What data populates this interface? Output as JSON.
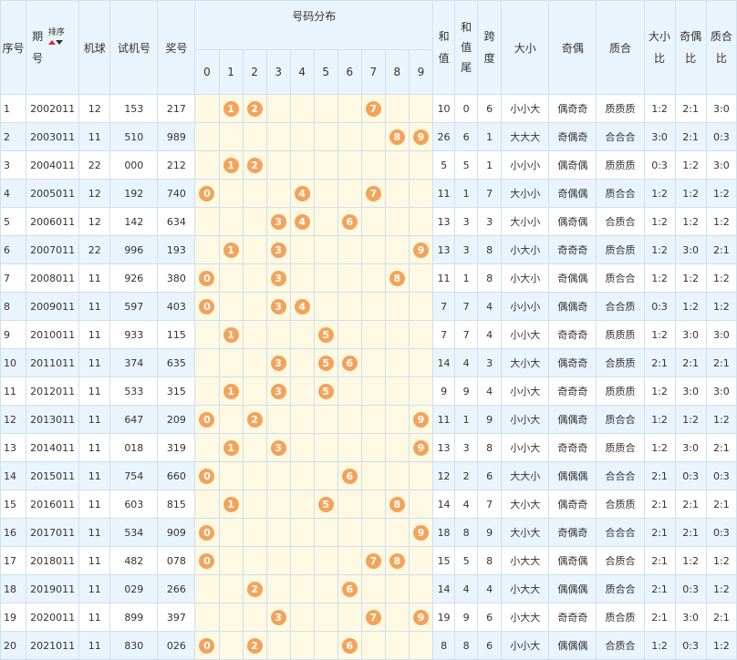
{
  "headers": {
    "seq": "序号",
    "period_top": "期",
    "period_bottom": "号",
    "sort": "排序",
    "machine": "机球",
    "trial": "试机号",
    "prize": "奖号",
    "dist": "号码分布",
    "digits": [
      "0",
      "1",
      "2",
      "3",
      "4",
      "5",
      "6",
      "7",
      "8",
      "9"
    ],
    "sum_top": "和",
    "sum_bottom": "值",
    "tail_top": "和",
    "tail_mid": "值",
    "tail_bottom": "尾",
    "span_top": "跨",
    "span_bottom": "度",
    "size": "大小",
    "parity": "奇偶",
    "prime": "质合",
    "size_ratio_top": "大小",
    "size_ratio_bottom": "比",
    "parity_ratio_top": "奇偶",
    "parity_ratio_bottom": "比",
    "prime_ratio_top": "质合",
    "prime_ratio_bottom": "比"
  },
  "ball_color": "#f3a35b",
  "rows": [
    {
      "seq": "1",
      "period": "2002011",
      "machine": "12",
      "trial": "153",
      "prize": "217",
      "balls": [
        1,
        2,
        7
      ],
      "sum": "10",
      "tail": "0",
      "span": "6",
      "size": "小小大",
      "parity": "偶奇奇",
      "prime": "质质质",
      "sr": "1:2",
      "pr": "2:1",
      "qr": "3:0"
    },
    {
      "seq": "2",
      "period": "2003011",
      "machine": "11",
      "trial": "510",
      "prize": "989",
      "balls": [
        8,
        9
      ],
      "sum": "26",
      "tail": "6",
      "span": "1",
      "size": "大大大",
      "parity": "奇偶奇",
      "prime": "合合合",
      "sr": "3:0",
      "pr": "2:1",
      "qr": "0:3"
    },
    {
      "seq": "3",
      "period": "2004011",
      "machine": "22",
      "trial": "000",
      "prize": "212",
      "balls": [
        1,
        2
      ],
      "sum": "5",
      "tail": "5",
      "span": "1",
      "size": "小小小",
      "parity": "偶奇偶",
      "prime": "质质质",
      "sr": "0:3",
      "pr": "1:2",
      "qr": "3:0"
    },
    {
      "seq": "4",
      "period": "2005011",
      "machine": "12",
      "trial": "192",
      "prize": "740",
      "balls": [
        0,
        4,
        7
      ],
      "sum": "11",
      "tail": "1",
      "span": "7",
      "size": "大小小",
      "parity": "奇偶偶",
      "prime": "质合合",
      "sr": "1:2",
      "pr": "1:2",
      "qr": "1:2"
    },
    {
      "seq": "5",
      "period": "2006011",
      "machine": "12",
      "trial": "142",
      "prize": "634",
      "balls": [
        3,
        4,
        6
      ],
      "sum": "13",
      "tail": "3",
      "span": "3",
      "size": "大小小",
      "parity": "偶奇偶",
      "prime": "合质合",
      "sr": "1:2",
      "pr": "1:2",
      "qr": "1:2"
    },
    {
      "seq": "6",
      "period": "2007011",
      "machine": "22",
      "trial": "996",
      "prize": "193",
      "balls": [
        1,
        3,
        9
      ],
      "sum": "13",
      "tail": "3",
      "span": "8",
      "size": "小大小",
      "parity": "奇奇奇",
      "prime": "质合质",
      "sr": "1:2",
      "pr": "3:0",
      "qr": "2:1"
    },
    {
      "seq": "7",
      "period": "2008011",
      "machine": "11",
      "trial": "926",
      "prize": "380",
      "balls": [
        0,
        3,
        8
      ],
      "sum": "11",
      "tail": "1",
      "span": "8",
      "size": "小大小",
      "parity": "奇偶偶",
      "prime": "质合合",
      "sr": "1:2",
      "pr": "1:2",
      "qr": "1:2"
    },
    {
      "seq": "8",
      "period": "2009011",
      "machine": "11",
      "trial": "597",
      "prize": "403",
      "balls": [
        0,
        3,
        4
      ],
      "sum": "7",
      "tail": "7",
      "span": "4",
      "size": "小小小",
      "parity": "偶偶奇",
      "prime": "合合质",
      "sr": "0:3",
      "pr": "1:2",
      "qr": "1:2"
    },
    {
      "seq": "9",
      "period": "2010011",
      "machine": "11",
      "trial": "933",
      "prize": "115",
      "balls": [
        1,
        5
      ],
      "sum": "7",
      "tail": "7",
      "span": "4",
      "size": "小小大",
      "parity": "奇奇奇",
      "prime": "质质质",
      "sr": "1:2",
      "pr": "3:0",
      "qr": "3:0"
    },
    {
      "seq": "10",
      "period": "2011011",
      "machine": "11",
      "trial": "374",
      "prize": "635",
      "balls": [
        3,
        5,
        6
      ],
      "sum": "14",
      "tail": "4",
      "span": "3",
      "size": "大小大",
      "parity": "偶奇奇",
      "prime": "合质质",
      "sr": "2:1",
      "pr": "2:1",
      "qr": "2:1"
    },
    {
      "seq": "11",
      "period": "2012011",
      "machine": "11",
      "trial": "533",
      "prize": "315",
      "balls": [
        1,
        3,
        5
      ],
      "sum": "9",
      "tail": "9",
      "span": "4",
      "size": "小小大",
      "parity": "奇奇奇",
      "prime": "质质质",
      "sr": "1:2",
      "pr": "3:0",
      "qr": "3:0"
    },
    {
      "seq": "12",
      "period": "2013011",
      "machine": "11",
      "trial": "647",
      "prize": "209",
      "balls": [
        0,
        2,
        9
      ],
      "sum": "11",
      "tail": "1",
      "span": "9",
      "size": "小小大",
      "parity": "偶偶奇",
      "prime": "质合合",
      "sr": "1:2",
      "pr": "1:2",
      "qr": "1:2"
    },
    {
      "seq": "13",
      "period": "2014011",
      "machine": "11",
      "trial": "018",
      "prize": "319",
      "balls": [
        1,
        3,
        9
      ],
      "sum": "13",
      "tail": "3",
      "span": "8",
      "size": "小小大",
      "parity": "奇奇奇",
      "prime": "质质合",
      "sr": "1:2",
      "pr": "3:0",
      "qr": "2:1"
    },
    {
      "seq": "14",
      "period": "2015011",
      "machine": "11",
      "trial": "754",
      "prize": "660",
      "balls": [
        0,
        6
      ],
      "sum": "12",
      "tail": "2",
      "span": "6",
      "size": "大大小",
      "parity": "偶偶偶",
      "prime": "合合合",
      "sr": "2:1",
      "pr": "0:3",
      "qr": "0:3"
    },
    {
      "seq": "15",
      "period": "2016011",
      "machine": "11",
      "trial": "603",
      "prize": "815",
      "balls": [
        1,
        5,
        8
      ],
      "sum": "14",
      "tail": "4",
      "span": "7",
      "size": "大小大",
      "parity": "偶奇奇",
      "prime": "合质质",
      "sr": "2:1",
      "pr": "2:1",
      "qr": "2:1"
    },
    {
      "seq": "16",
      "period": "2017011",
      "machine": "11",
      "trial": "534",
      "prize": "909",
      "balls": [
        0,
        9
      ],
      "sum": "18",
      "tail": "8",
      "span": "9",
      "size": "大小大",
      "parity": "奇偶奇",
      "prime": "合合合",
      "sr": "2:1",
      "pr": "2:1",
      "qr": "0:3"
    },
    {
      "seq": "17",
      "period": "2018011",
      "machine": "11",
      "trial": "482",
      "prize": "078",
      "balls": [
        0,
        7,
        8
      ],
      "sum": "15",
      "tail": "5",
      "span": "8",
      "size": "小大大",
      "parity": "偶奇偶",
      "prime": "合质合",
      "sr": "2:1",
      "pr": "1:2",
      "qr": "1:2"
    },
    {
      "seq": "18",
      "period": "2019011",
      "machine": "11",
      "trial": "029",
      "prize": "266",
      "balls": [
        2,
        6
      ],
      "sum": "14",
      "tail": "4",
      "span": "4",
      "size": "小大大",
      "parity": "偶偶偶",
      "prime": "质合合",
      "sr": "2:1",
      "pr": "0:3",
      "qr": "1:2"
    },
    {
      "seq": "19",
      "period": "2020011",
      "machine": "11",
      "trial": "899",
      "prize": "397",
      "balls": [
        3,
        7,
        9
      ],
      "sum": "19",
      "tail": "9",
      "span": "6",
      "size": "小大大",
      "parity": "奇奇奇",
      "prime": "质合质",
      "sr": "2:1",
      "pr": "3:0",
      "qr": "2:1"
    },
    {
      "seq": "20",
      "period": "2021011",
      "machine": "11",
      "trial": "830",
      "prize": "026",
      "balls": [
        0,
        2,
        6
      ],
      "sum": "8",
      "tail": "8",
      "span": "6",
      "size": "小小大",
      "parity": "偶偶偶",
      "prime": "合质合",
      "sr": "1:2",
      "pr": "0:3",
      "qr": "1:2"
    }
  ]
}
